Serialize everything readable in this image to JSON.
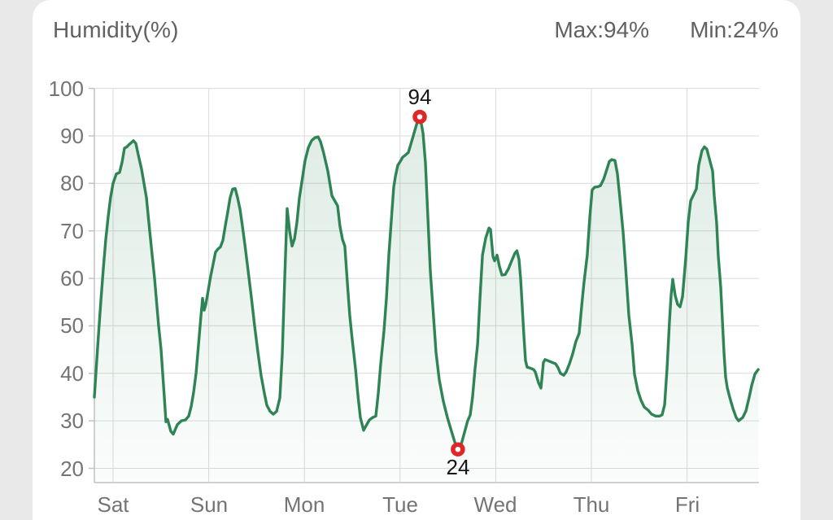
{
  "header": {
    "title": "Humidity(%)",
    "max_label": "Max:94%",
    "min_label": "Min:24%"
  },
  "chart_data": {
    "type": "area",
    "title": "Humidity(%)",
    "unit": "%",
    "legend": "none",
    "grid": "on",
    "x_axis": {
      "type": "time",
      "tick_labels": [
        "Sat",
        "Sun",
        "Mon",
        "Tue",
        "Wed",
        "Thu",
        "Fri"
      ],
      "note": "x in day units, 0 = Sat 00:00, labels sit on day-boundary gridlines",
      "range": [
        -0.196,
        6.744
      ]
    },
    "y_axis": {
      "tick_values": [
        100,
        90,
        80,
        70,
        60,
        50,
        40,
        30,
        20
      ],
      "min": 20,
      "max": 100
    },
    "max_point": {
      "x_day": 3.206,
      "value": 94,
      "label": "94"
    },
    "min_point": {
      "x_day": 3.605,
      "value": 24,
      "label": "24"
    },
    "series": [
      {
        "name": "Humidity",
        "points": [
          [
            -0.196,
            35
          ],
          [
            -0.179,
            40
          ],
          [
            -0.153,
            48
          ],
          [
            -0.128,
            55
          ],
          [
            -0.102,
            62
          ],
          [
            -0.077,
            68
          ],
          [
            -0.051,
            73
          ],
          [
            -0.026,
            77
          ],
          [
            0,
            80
          ],
          [
            0.034,
            82
          ],
          [
            0.068,
            82.3
          ],
          [
            0.094,
            84.5
          ],
          [
            0.119,
            87.4
          ],
          [
            0.145,
            87.7
          ],
          [
            0.162,
            88.1
          ],
          [
            0.187,
            88.5
          ],
          [
            0.213,
            89
          ],
          [
            0.238,
            88.4
          ],
          [
            0.264,
            86
          ],
          [
            0.298,
            83
          ],
          [
            0.323,
            80
          ],
          [
            0.349,
            77
          ],
          [
            0.383,
            70
          ],
          [
            0.408,
            65
          ],
          [
            0.434,
            60
          ],
          [
            0.459,
            54
          ],
          [
            0.476,
            50
          ],
          [
            0.502,
            45
          ],
          [
            0.519,
            40
          ],
          [
            0.536,
            35
          ],
          [
            0.553,
            29.8
          ],
          [
            0.57,
            30.3
          ],
          [
            0.604,
            27.8
          ],
          [
            0.629,
            27.2
          ],
          [
            0.672,
            29.2
          ],
          [
            0.714,
            30
          ],
          [
            0.757,
            30.2
          ],
          [
            0.791,
            31
          ],
          [
            0.816,
            33
          ],
          [
            0.842,
            36
          ],
          [
            0.867,
            40
          ],
          [
            0.893,
            46
          ],
          [
            0.918,
            52
          ],
          [
            0.935,
            55.8
          ],
          [
            0.952,
            53.3
          ],
          [
            0.969,
            54.5
          ],
          [
            0.995,
            57.5
          ],
          [
            1.02,
            60.5
          ],
          [
            1.046,
            63
          ],
          [
            1.071,
            65.5
          ],
          [
            1.097,
            66.2
          ],
          [
            1.122,
            66.6
          ],
          [
            1.148,
            68
          ],
          [
            1.173,
            71
          ],
          [
            1.199,
            74
          ],
          [
            1.224,
            77
          ],
          [
            1.25,
            78.8
          ],
          [
            1.276,
            78.9
          ],
          [
            1.301,
            77
          ],
          [
            1.327,
            74.5
          ],
          [
            1.352,
            71
          ],
          [
            1.378,
            67
          ],
          [
            1.412,
            61.5
          ],
          [
            1.446,
            56
          ],
          [
            1.48,
            50
          ],
          [
            1.514,
            44.5
          ],
          [
            1.548,
            39.5
          ],
          [
            1.582,
            35.8
          ],
          [
            1.607,
            33.3
          ],
          [
            1.641,
            32
          ],
          [
            1.675,
            31.4
          ],
          [
            1.709,
            32
          ],
          [
            1.743,
            34.8
          ],
          [
            1.769,
            44
          ],
          [
            1.794,
            60
          ],
          [
            1.82,
            74.7
          ],
          [
            1.845,
            70
          ],
          [
            1.871,
            66.8
          ],
          [
            1.896,
            68.3
          ],
          [
            1.922,
            71.8
          ],
          [
            1.947,
            76.9
          ],
          [
            1.981,
            81.4
          ],
          [
            2.007,
            84.8
          ],
          [
            2.041,
            87.5
          ],
          [
            2.075,
            89
          ],
          [
            2.109,
            89.6
          ],
          [
            2.143,
            89.8
          ],
          [
            2.168,
            88.8
          ],
          [
            2.202,
            86.3
          ],
          [
            2.245,
            82.6
          ],
          [
            2.287,
            77.4
          ],
          [
            2.321,
            76.2
          ],
          [
            2.347,
            75.3
          ],
          [
            2.372,
            71
          ],
          [
            2.398,
            68.2
          ],
          [
            2.423,
            66.8
          ],
          [
            2.449,
            59.1
          ],
          [
            2.474,
            52.3
          ],
          [
            2.5,
            47.1
          ],
          [
            2.534,
            41
          ],
          [
            2.56,
            35.2
          ],
          [
            2.585,
            30.7
          ],
          [
            2.619,
            28
          ],
          [
            2.645,
            29
          ],
          [
            2.679,
            30.2
          ],
          [
            2.713,
            30.7
          ],
          [
            2.747,
            31
          ],
          [
            2.772,
            35.8
          ],
          [
            2.798,
            42
          ],
          [
            2.832,
            48.9
          ],
          [
            2.857,
            55.7
          ],
          [
            2.883,
            64.9
          ],
          [
            2.917,
            74.5
          ],
          [
            2.934,
            79.2
          ],
          [
            2.951,
            81.4
          ],
          [
            2.976,
            83.8
          ],
          [
            3.002,
            84.6
          ],
          [
            3.027,
            85.5
          ],
          [
            3.053,
            85.9
          ],
          [
            3.087,
            86.5
          ],
          [
            3.129,
            89.4
          ],
          [
            3.155,
            91.2
          ],
          [
            3.18,
            92.9
          ],
          [
            3.206,
            94
          ],
          [
            3.223,
            92.5
          ],
          [
            3.24,
            90.6
          ],
          [
            3.265,
            84.3
          ],
          [
            3.291,
            72.8
          ],
          [
            3.316,
            61.5
          ],
          [
            3.35,
            51.8
          ],
          [
            3.376,
            44.4
          ],
          [
            3.41,
            38.6
          ],
          [
            3.452,
            34.1
          ],
          [
            3.495,
            30.7
          ],
          [
            3.537,
            27.8
          ],
          [
            3.571,
            25.6
          ],
          [
            3.605,
            24
          ],
          [
            3.639,
            25
          ],
          [
            3.673,
            27.5
          ],
          [
            3.707,
            30
          ],
          [
            3.733,
            31.2
          ],
          [
            3.758,
            35
          ],
          [
            3.784,
            41
          ],
          [
            3.81,
            46.1
          ],
          [
            3.835,
            55.7
          ],
          [
            3.861,
            64.9
          ],
          [
            3.895,
            68.5
          ],
          [
            3.929,
            70.6
          ],
          [
            3.946,
            70.3
          ],
          [
            3.971,
            64.6
          ],
          [
            3.988,
            63.7
          ],
          [
            4.014,
            64.9
          ],
          [
            4.039,
            62.5
          ],
          [
            4.065,
            60.7
          ],
          [
            4.099,
            60.8
          ],
          [
            4.133,
            62
          ],
          [
            4.167,
            63.7
          ],
          [
            4.201,
            65.3
          ],
          [
            4.221,
            65.8
          ],
          [
            4.243,
            64
          ],
          [
            4.26,
            60
          ],
          [
            4.277,
            54
          ],
          [
            4.294,
            48
          ],
          [
            4.311,
            42.7
          ],
          [
            4.328,
            41.3
          ],
          [
            4.362,
            41.1
          ],
          [
            4.396,
            40.8
          ],
          [
            4.413,
            40.3
          ],
          [
            4.447,
            38
          ],
          [
            4.473,
            36.9
          ],
          [
            4.498,
            42.3
          ],
          [
            4.515,
            42.9
          ],
          [
            4.566,
            42.5
          ],
          [
            4.626,
            42
          ],
          [
            4.651,
            41.2
          ],
          [
            4.677,
            40
          ],
          [
            4.711,
            39.6
          ],
          [
            4.736,
            40.3
          ],
          [
            4.77,
            42
          ],
          [
            4.804,
            44.1
          ],
          [
            4.838,
            46.7
          ],
          [
            4.872,
            48.4
          ],
          [
            4.889,
            52
          ],
          [
            4.906,
            55.7
          ],
          [
            4.923,
            59.1
          ],
          [
            4.94,
            62
          ],
          [
            4.957,
            64.9
          ],
          [
            4.983,
            72.8
          ],
          [
            5.008,
            78.6
          ],
          [
            5.034,
            79.2
          ],
          [
            5.068,
            79.3
          ],
          [
            5.094,
            79.5
          ],
          [
            5.128,
            80.9
          ],
          [
            5.162,
            83
          ],
          [
            5.187,
            84.6
          ],
          [
            5.213,
            85
          ],
          [
            5.247,
            84.8
          ],
          [
            5.272,
            82
          ],
          [
            5.298,
            76.9
          ],
          [
            5.332,
            69.7
          ],
          [
            5.357,
            62.5
          ],
          [
            5.391,
            52.3
          ],
          [
            5.425,
            46.1
          ],
          [
            5.451,
            39.8
          ],
          [
            5.485,
            36.4
          ],
          [
            5.519,
            34.3
          ],
          [
            5.553,
            32.9
          ],
          [
            5.595,
            32.2
          ],
          [
            5.629,
            31.4
          ],
          [
            5.672,
            31
          ],
          [
            5.714,
            31
          ],
          [
            5.74,
            31.3
          ],
          [
            5.765,
            33.4
          ],
          [
            5.791,
            41
          ],
          [
            5.816,
            51
          ],
          [
            5.833,
            56.5
          ],
          [
            5.85,
            59.8
          ],
          [
            5.876,
            56.4
          ],
          [
            5.901,
            54.5
          ],
          [
            5.927,
            54
          ],
          [
            5.952,
            56.1
          ],
          [
            5.986,
            64.3
          ],
          [
            6.012,
            71.8
          ],
          [
            6.037,
            76.3
          ],
          [
            6.071,
            77.7
          ],
          [
            6.097,
            78.8
          ],
          [
            6.122,
            83.8
          ],
          [
            6.156,
            86.9
          ],
          [
            6.182,
            87.7
          ],
          [
            6.207,
            87.2
          ],
          [
            6.241,
            84.6
          ],
          [
            6.267,
            82.6
          ],
          [
            6.284,
            77.4
          ],
          [
            6.309,
            71.8
          ],
          [
            6.326,
            64.9
          ],
          [
            6.352,
            58.1
          ],
          [
            6.369,
            51.2
          ],
          [
            6.386,
            44.4
          ],
          [
            6.403,
            39.2
          ],
          [
            6.42,
            37
          ],
          [
            6.446,
            35
          ],
          [
            6.48,
            32.6
          ],
          [
            6.514,
            30.7
          ],
          [
            6.539,
            30
          ],
          [
            6.582,
            30.7
          ],
          [
            6.616,
            32.1
          ],
          [
            6.65,
            35
          ],
          [
            6.676,
            37.5
          ],
          [
            6.71,
            39.9
          ],
          [
            6.744,
            40.8
          ]
        ]
      }
    ],
    "colors": {
      "line": "#2e8454",
      "fill_top": "rgba(46,132,84,0.17)",
      "fill_bottom": "rgba(46,132,84,0.02)",
      "marker": "#e02727",
      "grid": "#dadada",
      "axis": "#c2c2c2",
      "card_bg": "#ffffff",
      "page_bg": "#e9e9e9"
    }
  }
}
